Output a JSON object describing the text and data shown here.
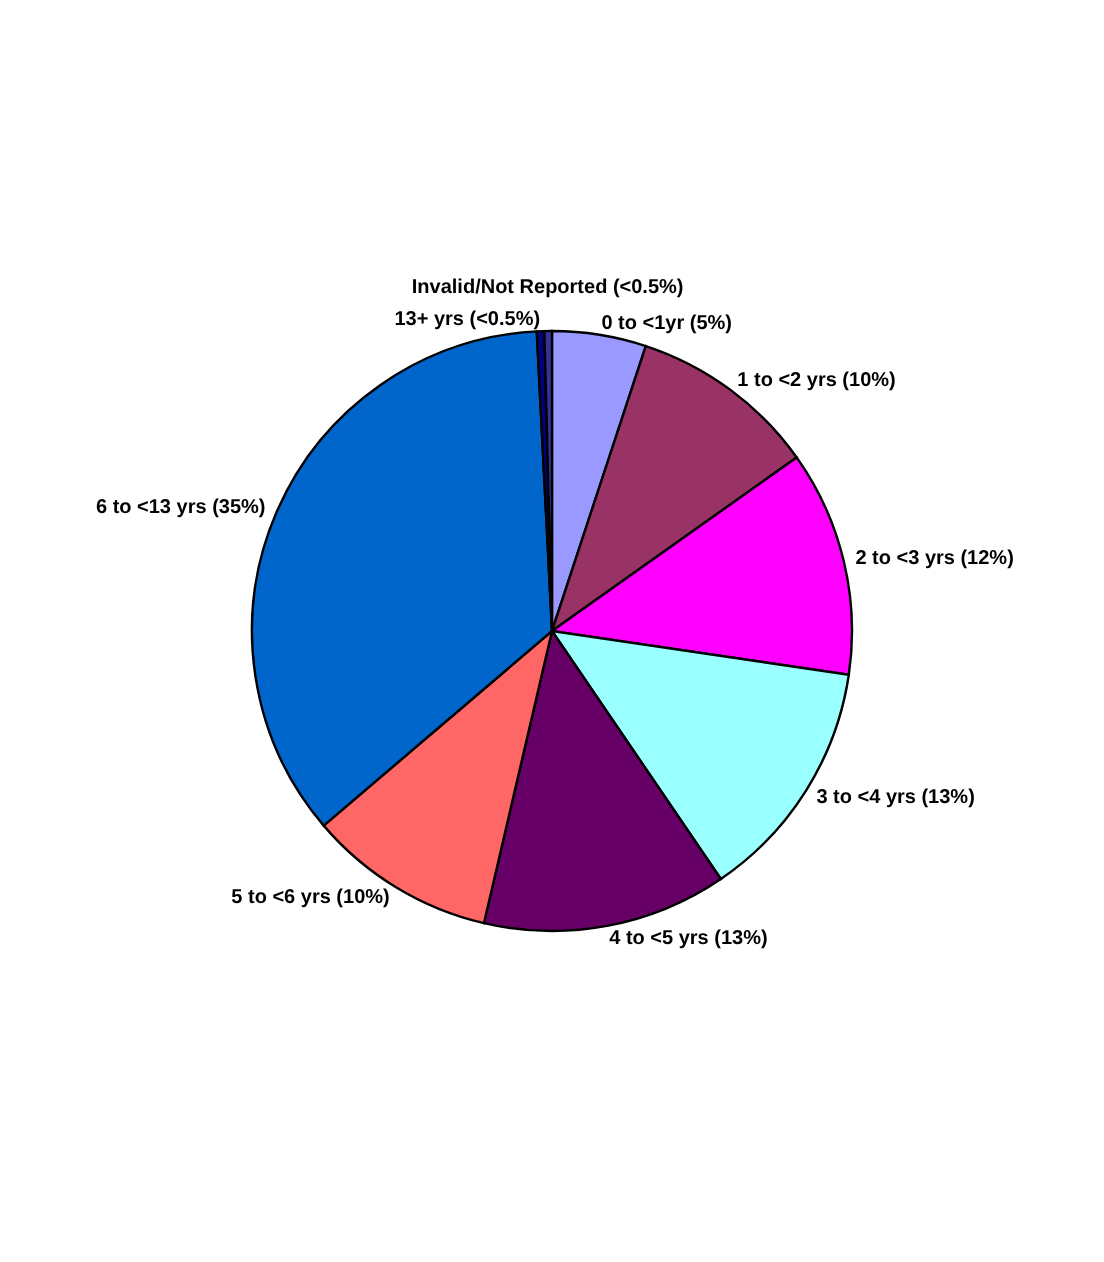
{
  "chart_data": {
    "type": "pie",
    "categories": [
      "0 to <1yr",
      "1 to <2 yrs",
      "2 to <3 yrs",
      "3 to <4 yrs",
      "4 to <5 yrs",
      "5 to <6 yrs",
      "6 to <13 yrs",
      "13+ yrs",
      "Invalid/Not Reported"
    ],
    "values": [
      5,
      10,
      12,
      13,
      13,
      10,
      35,
      0.4,
      0.4
    ],
    "value_labels": [
      "(5%)",
      "(10%)",
      "(12%)",
      "(13%)",
      "(13%)",
      "(10%)",
      "(35%)",
      "(<0.5%)",
      "(<0.5%)"
    ],
    "colors": [
      "#9999ff",
      "#993366",
      "#ff00ff",
      "#99ffff",
      "#660066",
      "#ff6666",
      "#0066cc",
      "#000080",
      "#333399"
    ]
  }
}
